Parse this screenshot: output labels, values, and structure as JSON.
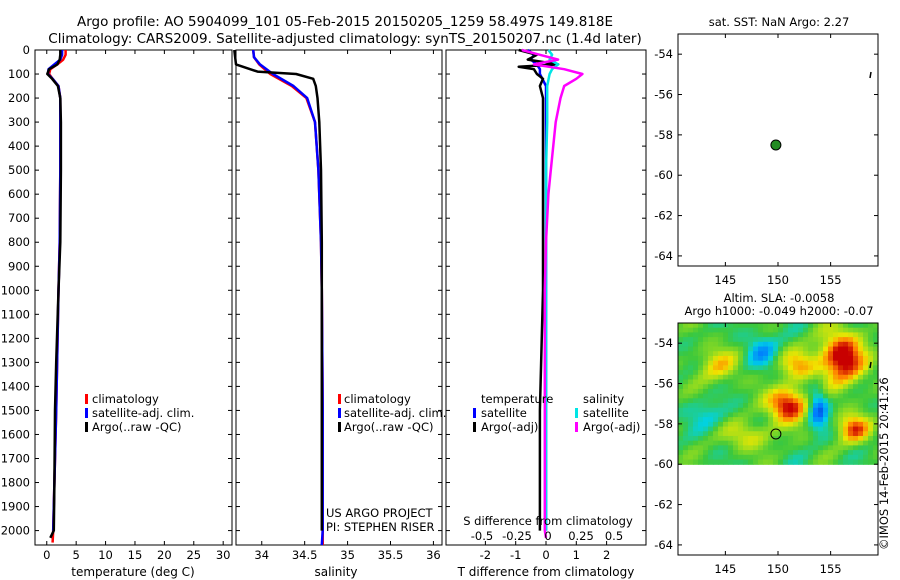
{
  "title": {
    "line1": "Argo profile: AO 5904099_101 05-Feb-2015 20150205_1259 58.497S 149.818E",
    "line2": "Climatology: CARS2009. Satellite-adjusted climatology: synTS_20150207.nc (1.4d later)"
  },
  "colors": {
    "climatology": "#ff0000",
    "satellite": "#0000ff",
    "argo": "#000000",
    "sat_salinity": "#00e5e5",
    "argo_salinity_adj": "#ff00ff"
  },
  "depth_axis": {
    "range": [
      0,
      2060
    ],
    "ticks": [
      0,
      100,
      200,
      300,
      400,
      500,
      600,
      700,
      800,
      900,
      1000,
      1100,
      1200,
      1300,
      1400,
      1500,
      1600,
      1700,
      1800,
      1900,
      2000
    ]
  },
  "chart_data": [
    {
      "type": "line",
      "name": "temperature-profile",
      "xlabel": "temperature (deg C)",
      "xlim": [
        -2,
        31.5
      ],
      "xticks": [
        0,
        5,
        10,
        15,
        20,
        25,
        30
      ],
      "ylim": [
        0,
        2060
      ],
      "legend": [
        "climatology",
        "satellite-adj. clim.",
        "Argo(..raw -QC)"
      ],
      "series": [
        {
          "name": "climatology",
          "color": "#ff0000",
          "depth": [
            0,
            20,
            40,
            60,
            80,
            100,
            120,
            150,
            200,
            300,
            500,
            800,
            1000,
            1500,
            2000,
            2050
          ],
          "values": [
            3.2,
            3.2,
            2.8,
            1.8,
            0.6,
            0.4,
            1.0,
            2.0,
            2.3,
            2.3,
            2.3,
            2.2,
            2.0,
            1.6,
            1.1,
            1.0
          ]
        },
        {
          "name": "satellite-adj. clim.",
          "color": "#0000ff",
          "depth": [
            0,
            20,
            40,
            60,
            80,
            100,
            120,
            150,
            200,
            300,
            500,
            800,
            1000,
            1500,
            2000
          ],
          "values": [
            2.6,
            2.6,
            2.3,
            1.3,
            0.3,
            0.2,
            1.0,
            2.0,
            2.3,
            2.3,
            2.3,
            2.2,
            2.0,
            1.6,
            1.1
          ]
        },
        {
          "name": "Argo(..raw -QC)",
          "color": "#000000",
          "depth": [
            0,
            20,
            40,
            60,
            80,
            100,
            120,
            150,
            200,
            300,
            500,
            800,
            1000,
            1300,
            1500,
            1800,
            2000,
            2030
          ],
          "values": [
            2.3,
            2.3,
            2.2,
            1.8,
            0.4,
            0.1,
            0.9,
            1.9,
            2.3,
            2.4,
            2.4,
            2.3,
            2.0,
            1.6,
            1.4,
            1.3,
            1.2,
            0.6
          ]
        }
      ]
    },
    {
      "type": "line",
      "name": "salinity-profile",
      "xlabel": "salinity",
      "xlim": [
        33.7,
        36.1
      ],
      "xticks": [
        34,
        34.5,
        35,
        35.5,
        36
      ],
      "xticklabels": [
        "34",
        "34.5",
        "35",
        "35.5",
        "36"
      ],
      "ylim": [
        0,
        2060
      ],
      "legend": [
        "climatology",
        "satellite-adj. clim.",
        "Argo(..raw -QC)"
      ],
      "annotation": [
        "US ARGO PROJECT",
        "PI: STEPHEN RISER"
      ],
      "series": [
        {
          "name": "climatology",
          "color": "#ff0000",
          "depth": [
            0,
            30,
            60,
            100,
            150,
            200,
            300,
            500,
            800,
            1000,
            1500,
            2000,
            2060
          ],
          "values": [
            33.9,
            33.91,
            33.97,
            34.1,
            34.35,
            34.52,
            34.62,
            34.66,
            34.69,
            34.7,
            34.71,
            34.71,
            34.71
          ]
        },
        {
          "name": "satellite-adj. clim.",
          "color": "#0000ff",
          "depth": [
            0,
            30,
            60,
            100,
            150,
            200,
            300,
            500,
            800,
            1000,
            1500,
            2000,
            2060
          ],
          "values": [
            33.9,
            33.91,
            33.98,
            34.13,
            34.37,
            34.53,
            34.62,
            34.66,
            34.69,
            34.7,
            34.71,
            34.71,
            34.7
          ]
        },
        {
          "name": "Argo(..raw -QC)",
          "color": "#000000",
          "depth": [
            0,
            60,
            90,
            100,
            120,
            150,
            200,
            300,
            500,
            800,
            1000,
            1500,
            1800,
            2000
          ],
          "values": [
            33.68,
            33.7,
            33.95,
            34.4,
            34.6,
            34.63,
            34.65,
            34.67,
            34.69,
            34.7,
            34.7,
            34.7,
            34.7,
            34.7
          ]
        }
      ]
    },
    {
      "type": "line",
      "name": "difference-profile",
      "xlabel": "T difference from climatology",
      "xlim": [
        -3.3,
        3.3
      ],
      "xticks": [
        -2,
        -1,
        0,
        1,
        2
      ],
      "xticklabels": [
        "-2",
        "-1",
        "0",
        "1",
        "2"
      ],
      "top_label": "S difference from climatology",
      "top_ticklabels": [
        "-0.5",
        "-0.25",
        "0",
        "0.25",
        "0.5"
      ],
      "ylim": [
        0,
        2060
      ],
      "legend_temperature_title": "temperature",
      "legend_temperature": [
        "satellite",
        "Argo(-adj)"
      ],
      "legend_salinity_title": "salinity",
      "legend_salinity": [
        "satellite",
        "Argo(-adj)"
      ],
      "series": [
        {
          "name": "temperature satellite",
          "color": "#0000ff",
          "depth": [
            0,
            20,
            40,
            60,
            80,
            100,
            150,
            200,
            300,
            500,
            1000,
            1500,
            2000
          ],
          "values": [
            -0.6,
            -0.4,
            -0.5,
            -0.3,
            -0.2,
            -0.2,
            0.0,
            0.0,
            0.0,
            0.0,
            0.0,
            0.0,
            0.0
          ]
        },
        {
          "name": "temperature Argo(-adj)",
          "color": "#000000",
          "depth": [
            0,
            20,
            40,
            60,
            70,
            80,
            100,
            120,
            150,
            200,
            300,
            500,
            800,
            1000,
            1500,
            1800,
            2000
          ],
          "values": [
            -0.9,
            -0.3,
            -0.6,
            0.4,
            -0.9,
            -0.4,
            -0.3,
            -0.1,
            -0.2,
            -0.1,
            -0.1,
            -0.1,
            -0.1,
            -0.1,
            -0.2,
            -0.2,
            -0.2
          ]
        },
        {
          "name": "salinity satellite",
          "color": "#00e5e5",
          "depth": [
            0,
            20,
            40,
            60,
            80,
            100,
            150,
            200,
            300,
            500,
            1000,
            1500,
            2000
          ],
          "values": [
            0.02,
            0.05,
            0.03,
            0.1,
            0.05,
            0.03,
            0.01,
            0.01,
            0.01,
            0.0,
            0.0,
            0.0,
            0.0
          ]
        },
        {
          "name": "salinity Argo(-adj)",
          "color": "#ff00ff",
          "depth": [
            0,
            20,
            40,
            60,
            80,
            100,
            120,
            150,
            200,
            300,
            500,
            600,
            800,
            1000,
            1500,
            2000,
            2030
          ],
          "values": [
            -0.2,
            -0.05,
            0.1,
            -0.1,
            0.15,
            0.3,
            0.25,
            0.15,
            0.12,
            0.08,
            0.04,
            0.02,
            0.0,
            -0.01,
            -0.01,
            -0.01,
            0.0
          ]
        }
      ]
    },
    {
      "type": "scatter",
      "name": "sst-map",
      "title": "sat. SST: NaN Argo: 2.27",
      "xlim": [
        140.5,
        159.5
      ],
      "ylim": [
        -64.5,
        -53
      ],
      "xticks": [
        145,
        150,
        155
      ],
      "yticks": [
        -54,
        -56,
        -58,
        -60,
        -62,
        -64
      ],
      "points": [
        {
          "lon": 149.8,
          "lat": -58.5,
          "color": "#228b22"
        }
      ]
    },
    {
      "type": "heatmap",
      "name": "altimetry-map",
      "title_line1": "Altim. SLA: -0.0058",
      "title_line2": "Argo h1000: -0.049 h2000: -0.07",
      "xlim": [
        140.5,
        159.5
      ],
      "ylim": [
        -64.5,
        -53
      ],
      "data_lat_range": [
        -60,
        -53
      ],
      "xticks": [
        145,
        150,
        155
      ],
      "yticks": [
        -54,
        -56,
        -58,
        -60,
        -62,
        -64
      ],
      "points": [
        {
          "lon": 149.8,
          "lat": -58.5
        }
      ],
      "color_min": -0.6,
      "color_max": 0.6
    }
  ],
  "credit": "©IMOS 14-Feb-2015 20:41:26"
}
